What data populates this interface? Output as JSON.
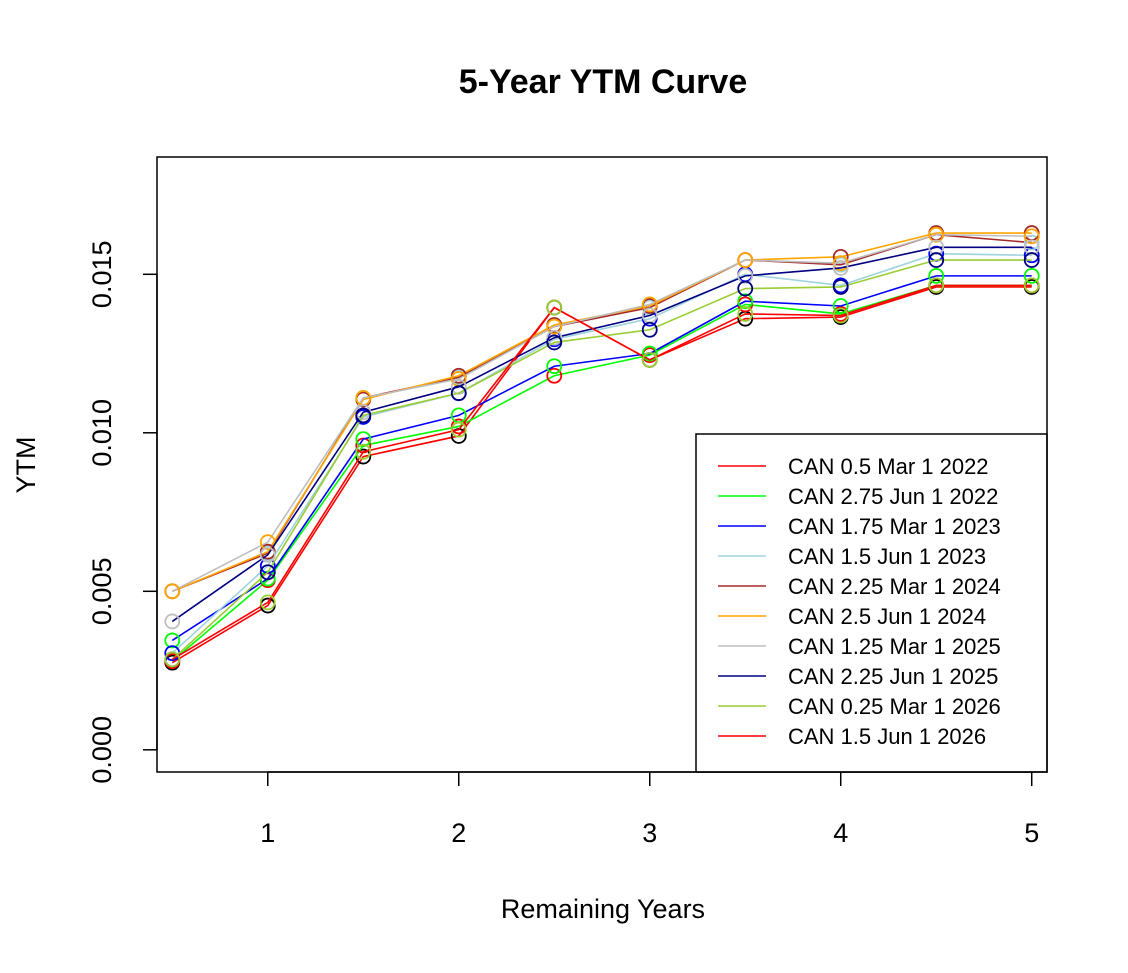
{
  "chart_data": {
    "type": "line",
    "title": "5-Year YTM Curve",
    "xlabel": "Remaining Years",
    "ylabel": "YTM",
    "xlim": [
      0.42,
      5.08
    ],
    "ylim": [
      -0.0007,
      0.0187
    ],
    "x_ticks": [
      1,
      2,
      3,
      4,
      5
    ],
    "x_tick_labels": [
      "1",
      "2",
      "3",
      "4",
      "5"
    ],
    "y_ticks": [
      0.0,
      0.005,
      0.01,
      0.015
    ],
    "y_tick_labels": [
      "0.000",
      "0.005",
      "0.010",
      "0.015"
    ],
    "grid": false,
    "legend_position": "bottom-right",
    "point_marker": "open-circle",
    "x": [
      0.5,
      1.0,
      1.5,
      2.0,
      2.5,
      3.0,
      3.5,
      4.0,
      4.5,
      5.0
    ],
    "series": [
      {
        "name": "CAN 0.5 Mar 1 2022",
        "color": "#ff0000",
        "marker_color": "#000000",
        "values": [
          0.00275,
          0.00455,
          0.00925,
          0.0099,
          0.01395,
          0.0123,
          0.0136,
          0.01365,
          0.0146,
          0.0146
        ]
      },
      {
        "name": "CAN 2.75 Jun 1 2022",
        "color": "#00ff00",
        "marker_color": "#ff0000",
        "values": [
          0.0028,
          0.00535,
          0.0096,
          0.0102,
          0.0118,
          0.01245,
          0.01405,
          0.01375,
          0.01465,
          0.01465
        ]
      },
      {
        "name": "CAN 1.75 Mar 1 2023",
        "color": "#0000ff",
        "marker_color": "#00ff00",
        "values": [
          0.00345,
          0.0054,
          0.0098,
          0.01055,
          0.0121,
          0.0125,
          0.01415,
          0.014,
          0.01495,
          0.01495
        ]
      },
      {
        "name": "CAN 1.5 Jun 1 2023",
        "color": "#9fd3de",
        "marker_color": "#0000ff",
        "values": [
          0.00305,
          0.0058,
          0.0105,
          0.01125,
          0.01295,
          0.0136,
          0.015,
          0.01465,
          0.01565,
          0.0156
        ]
      },
      {
        "name": "CAN 2.25 Mar 1 2024",
        "color": "#a52a2a",
        "marker_color": "#9fd3de",
        "values": [
          0.005,
          0.0062,
          0.0111,
          0.01175,
          0.01335,
          0.01395,
          0.01545,
          0.0153,
          0.01625,
          0.016
        ]
      },
      {
        "name": "CAN 2.5 Jun 1 2024",
        "color": "#ffa500",
        "marker_color": "#a52a2a",
        "values": [
          0.005,
          0.00625,
          0.01105,
          0.0118,
          0.0134,
          0.014,
          0.01545,
          0.01555,
          0.0163,
          0.0163
        ]
      },
      {
        "name": "CAN 1.25 Mar 1 2025",
        "color": "#bebebe",
        "marker_color": "#ffa500",
        "values": [
          0.005,
          0.00655,
          0.0111,
          0.0117,
          0.01335,
          0.01405,
          0.01545,
          0.01535,
          0.01625,
          0.0162
        ]
      },
      {
        "name": "CAN 2.25 Jun 1 2025",
        "color": "#000080",
        "marker_color": "#bebebe",
        "values": [
          0.00405,
          0.00615,
          0.01065,
          0.01145,
          0.013,
          0.0137,
          0.01495,
          0.0152,
          0.01585,
          0.01585
        ]
      },
      {
        "name": "CAN 0.25 Mar 1 2026",
        "color": "#9acd32",
        "marker_color": "#000080",
        "values": [
          0.00285,
          0.0056,
          0.01055,
          0.01125,
          0.01285,
          0.01325,
          0.01455,
          0.0146,
          0.01545,
          0.01545
        ]
      },
      {
        "name": "CAN 1.5 Jun 1 2026",
        "color": "#ff0000",
        "marker_color": "#9acd32",
        "values": [
          0.00285,
          0.00465,
          0.0094,
          0.0101,
          0.01395,
          0.0123,
          0.01375,
          0.0137,
          0.01465,
          0.01465
        ]
      }
    ]
  }
}
